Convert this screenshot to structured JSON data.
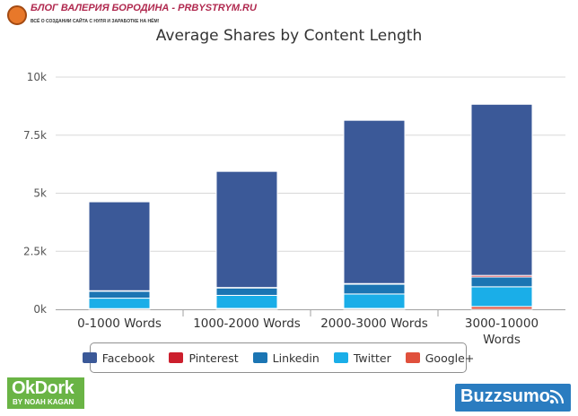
{
  "watermark": {
    "title": "БЛОГ ВАЛЕРИЯ БОРОДИНА - PRBYSTRYM.RU",
    "subtitle": "ВСЁ О СОЗДАНИИ САЙТА С НУЛЯ И ЗАРАБОТКЕ НА НЁМ!"
  },
  "chart_data": {
    "type": "bar",
    "stacked": true,
    "title": "Average Shares by Content Length",
    "xlabel": "",
    "ylabel": "",
    "categories": [
      "0-1000 Words",
      "1000-2000 Words",
      "2000-3000 Words",
      "3000-10000 Words"
    ],
    "ylim": [
      0,
      10000
    ],
    "yticks": [
      0,
      2500,
      5000,
      7500,
      10000
    ],
    "ytick_labels": [
      "0k",
      "2.5k",
      "5k",
      "7.5k",
      "10k"
    ],
    "grid": true,
    "legend_position": "bottom",
    "series": [
      {
        "name": "Google+",
        "color": "#e0503c",
        "values": [
          30,
          40,
          40,
          120
        ]
      },
      {
        "name": "Twitter",
        "color": "#1aaee8",
        "values": [
          450,
          560,
          620,
          850
        ]
      },
      {
        "name": "Linkedin",
        "color": "#1b75b3",
        "values": [
          300,
          320,
          420,
          420
        ]
      },
      {
        "name": "Pinterest",
        "color": "#cc1f2d",
        "values": [
          20,
          20,
          30,
          70
        ]
      },
      {
        "name": "Facebook",
        "color": "#3b5998",
        "values": [
          3830,
          5000,
          7030,
          7370
        ]
      }
    ],
    "legend_order": [
      "Facebook",
      "Pinterest",
      "Linkedin",
      "Twitter",
      "Google+"
    ]
  },
  "logos": {
    "okdork_main": "OkDork",
    "okdork_sub": "BY NOAH KAGAN",
    "buzzsumo": "Buzzsumo"
  }
}
